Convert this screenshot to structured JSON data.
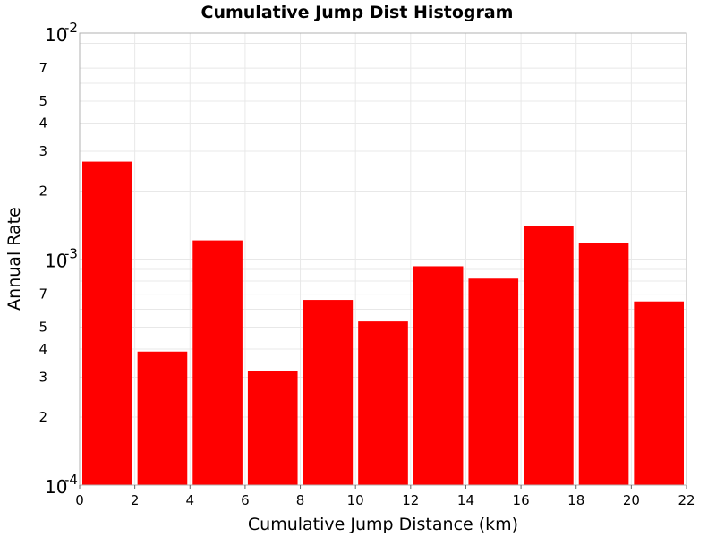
{
  "chart_data": {
    "type": "bar",
    "title": "Cumulative Jump Dist Histogram",
    "xlabel": "Cumulative Jump Distance (km)",
    "ylabel": "Annual Rate",
    "yscale": "log",
    "xlim": [
      0,
      22
    ],
    "ylim": [
      0.0001,
      0.01
    ],
    "grid": true,
    "bar_color": "#ff0000",
    "x_ticks": [
      "0",
      "2",
      "4",
      "6",
      "8",
      "10",
      "12",
      "14",
      "16",
      "18",
      "20",
      "22"
    ],
    "y_major_ticks": [
      {
        "value": 0.0001,
        "base": "10",
        "exp": "-4"
      },
      {
        "value": 0.001,
        "base": "10",
        "exp": "-3"
      },
      {
        "value": 0.01,
        "base": "10",
        "exp": "-2"
      }
    ],
    "y_minor_ticks": [
      {
        "value": 0.0002,
        "label": "2"
      },
      {
        "value": 0.0003,
        "label": "3"
      },
      {
        "value": 0.0004,
        "label": "4"
      },
      {
        "value": 0.0005,
        "label": "5"
      },
      {
        "value": 0.0007,
        "label": "7"
      },
      {
        "value": 0.002,
        "label": "2"
      },
      {
        "value": 0.003,
        "label": "3"
      },
      {
        "value": 0.004,
        "label": "4"
      },
      {
        "value": 0.005,
        "label": "5"
      },
      {
        "value": 0.007,
        "label": "7"
      }
    ],
    "bins": [
      {
        "x_start": 0,
        "x_end": 2,
        "value": 0.0027
      },
      {
        "x_start": 2,
        "x_end": 4,
        "value": 0.00039
      },
      {
        "x_start": 4,
        "x_end": 6,
        "value": 0.00121
      },
      {
        "x_start": 6,
        "x_end": 8,
        "value": 0.00032
      },
      {
        "x_start": 8,
        "x_end": 10,
        "value": 0.00066
      },
      {
        "x_start": 10,
        "x_end": 12,
        "value": 0.00053
      },
      {
        "x_start": 12,
        "x_end": 14,
        "value": 0.00093
      },
      {
        "x_start": 14,
        "x_end": 16,
        "value": 0.00082
      },
      {
        "x_start": 16,
        "x_end": 18,
        "value": 0.0014
      },
      {
        "x_start": 18,
        "x_end": 20,
        "value": 0.00118
      },
      {
        "x_start": 20,
        "x_end": 22,
        "value": 0.00065
      }
    ]
  }
}
